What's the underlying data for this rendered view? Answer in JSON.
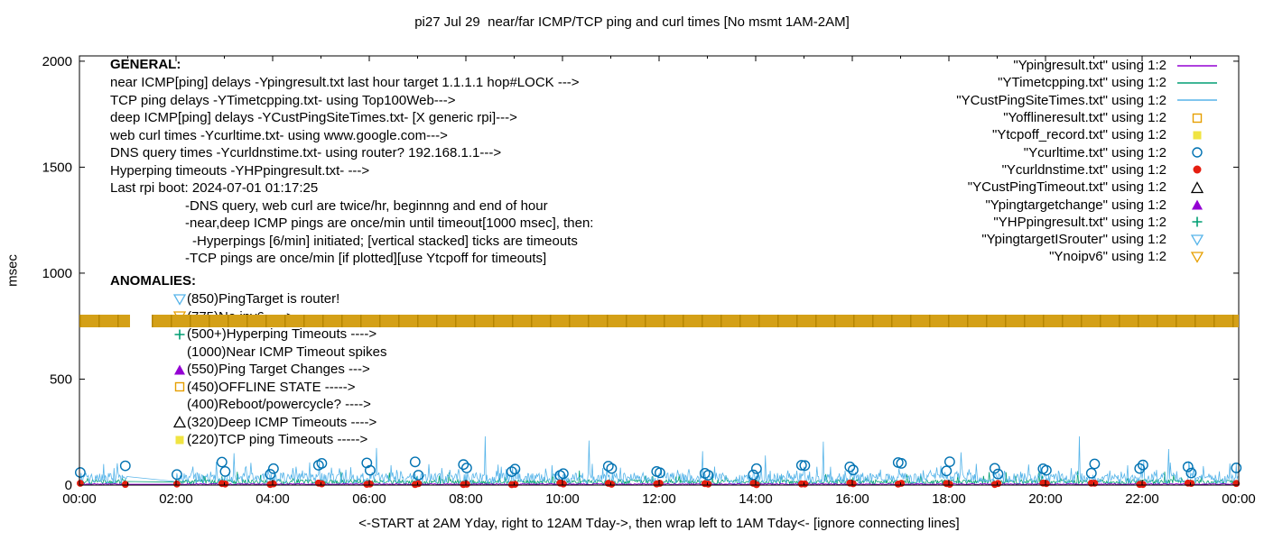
{
  "general": {
    "heading": "GENERAL:",
    "lines": [
      {
        "text": "near ICMP[ping] delays -Ypingresult.txt last hour target 1.1.1.1 hop#LOCK --->",
        "indent": 0
      },
      {
        "text": "TCP ping delays -YTimetcpping.txt- using Top100Web--->",
        "indent": 0
      },
      {
        "text": "deep ICMP[ping] delays -YCustPingSiteTimes.txt- [X generic rpi]--->",
        "indent": 0
      },
      {
        "text": "web curl times -Ycurltime.txt- using www.google.com--->",
        "indent": 0
      },
      {
        "text": "DNS query times -Ycurldnstime.txt- using router? 192.168.1.1--->",
        "indent": 0
      },
      {
        "text": "Hyperping timeouts -YHPpingresult.txt- --->",
        "indent": 0
      },
      {
        "text": "Last rpi boot: 2024-07-01 01:17:25",
        "indent": 0
      },
      {
        "text": "-DNS query, web curl are twice/hr, beginnng and end of hour",
        "indent": 1
      },
      {
        "text": "-near,deep ICMP pings are once/min until timeout[1000 msec], then:",
        "indent": 1
      },
      {
        "text": "-Hyperpings [6/min] initiated; [vertical stacked] ticks are timeouts",
        "indent": 2
      },
      {
        "text": "-TCP pings are once/min [if plotted][use Ytcpoff for timeouts]",
        "indent": 1
      }
    ]
  },
  "anomalies": {
    "heading": "ANOMALIES:",
    "items": [
      {
        "marker": "triangle-down-open",
        "color": "#56b4e9",
        "text": "(850)PingTarget is router!"
      },
      {
        "marker": "triangle-down-open",
        "color": "#e69f00",
        "text": "(775)No ipv6 ---->",
        "behind_band": true
      },
      {
        "marker": "plus",
        "color": "#009e73",
        "text": "(500+)Hyperping Timeouts ---->"
      },
      {
        "marker": "none",
        "color": "#000000",
        "text": "(1000)Near ICMP Timeout spikes"
      },
      {
        "marker": "triangle-filled",
        "color": "#9400d3",
        "text": "(550)Ping Target Changes --->"
      },
      {
        "marker": "square-open",
        "color": "#e69f00",
        "text": "(450)OFFLINE STATE ----->"
      },
      {
        "marker": "none",
        "color": "#000000",
        "text": "(400)Reboot/powercycle? ---->"
      },
      {
        "marker": "triangle-open",
        "color": "#000000",
        "text": "(320)Deep ICMP Timeouts ---->"
      },
      {
        "marker": "square-filled",
        "color": "#f0e442",
        "text": "(220)TCP ping Timeouts ----->"
      }
    ]
  },
  "chart_data": {
    "type": "line",
    "title": "pi27 Jul 29  near/far ICMP/TCP ping and curl times [No msmt 1AM-2AM]",
    "ylabel": "msec",
    "xlabel": "<-START at 2AM Yday, right to 12AM Tday->, then wrap left to 1AM Tday<- [ignore connecting lines]",
    "x_tick_labels": [
      "00:00",
      "02:00",
      "04:00",
      "06:00",
      "08:00",
      "10:00",
      "12:00",
      "14:00",
      "16:00",
      "18:00",
      "20:00",
      "22:00",
      "00:00"
    ],
    "x_range_hours": [
      0,
      24
    ],
    "ylim": [
      0,
      2025
    ],
    "y_ticks": [
      0,
      500,
      1000,
      1500,
      2000
    ],
    "grid": false,
    "legend_position": "top-right",
    "no_measurement_window_hours": [
      1,
      2
    ],
    "series": [
      {
        "label": "\"Ypingresult.txt\" using 1:2",
        "kind": "line",
        "color": "#9400d3",
        "approx_msec_range": [
          2,
          8
        ]
      },
      {
        "label": "\"YTimetcpping.txt\" using 1:2",
        "kind": "line",
        "color": "#009e73",
        "approx_msec_range": [
          4,
          75
        ]
      },
      {
        "label": "\"YCustPingSiteTimes.txt\" using 1:2",
        "kind": "line",
        "color": "#56b4e9",
        "approx_msec_range": [
          6,
          120
        ],
        "spike_hours": [
          3.2,
          6.15,
          8.4,
          10.55,
          12.9,
          14.2,
          15.4,
          18.25,
          20.7,
          22.55
        ],
        "spike_msec": [
          150,
          175,
          230,
          210,
          160,
          140,
          205,
          155,
          230,
          170
        ]
      },
      {
        "label": "\"Yofflineresult.txt\" using 1:2",
        "kind": "points",
        "marker": "square-open",
        "color": "#e69f00"
      },
      {
        "label": "\"Ytcpoff_record.txt\" using 1:2",
        "kind": "points",
        "marker": "square-filled",
        "color": "#f0e442"
      },
      {
        "label": "\"Ycurltime.txt\" using 1:2",
        "kind": "points",
        "marker": "circle-open",
        "color": "#0072b2",
        "minute_offsets": [
          1,
          57
        ],
        "approx_msec_range": [
          45,
          112
        ]
      },
      {
        "label": "\"Ycurldnstime.txt\" using 1:2",
        "kind": "points",
        "marker": "circle-filled",
        "color": "#e51e10",
        "minute_offsets": [
          1,
          57
        ],
        "approx_msec_range": [
          2,
          10
        ]
      },
      {
        "label": "\"YCustPingTimeout.txt\" using 1:2",
        "kind": "points",
        "marker": "triangle-open",
        "color": "#000000"
      },
      {
        "label": "\"Ypingtargetchange\" using 1:2",
        "kind": "points",
        "marker": "triangle-filled",
        "color": "#9400d3"
      },
      {
        "label": "\"YHPpingresult.txt\" using 1:2",
        "kind": "points",
        "marker": "plus",
        "color": "#009e73"
      },
      {
        "label": "\"YpingtargetISrouter\" using 1:2",
        "kind": "points",
        "marker": "triangle-down-open",
        "color": "#56b4e9"
      },
      {
        "label": "\"Ynoipv6\" using 1:2",
        "kind": "band",
        "marker": "triangle-down-open",
        "color": "#e69f00",
        "band_fill": "#d4a017",
        "band_dash": "#b68600",
        "band_y_msec": 775,
        "band_halfheight_msec": 30,
        "gap_hours": [
          1.05,
          1.5
        ]
      }
    ]
  }
}
